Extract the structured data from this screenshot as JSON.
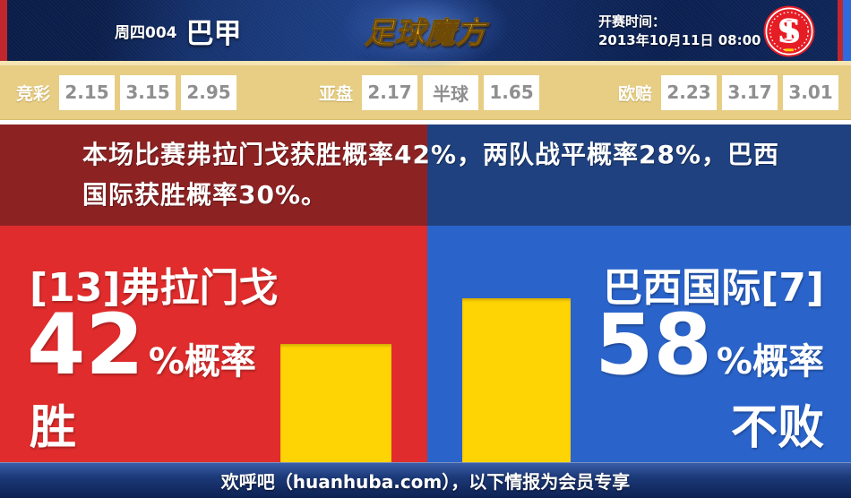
{
  "colors": {
    "home_red": "#e02c2c",
    "home_dark_red": "#8d2223",
    "away_blue": "#2a64cb",
    "away_dark_blue": "#20417f",
    "bar_yellow": "#ffd404",
    "odds_band_gold": "#e7ce84",
    "header_navy": "#122a64",
    "footer_navy": "#1c3a79"
  },
  "header": {
    "match_code": "周四004",
    "league": "巴甲",
    "site_logo": "足球魔方",
    "kickoff_label": "开赛时间：",
    "kickoff_datetime": "2013年10月11日 08:00",
    "club_badge_icon": "internacional-crest-icon"
  },
  "odds": {
    "groups": [
      {
        "label": "竞彩",
        "values": [
          "2.15",
          "3.15",
          "2.95"
        ]
      },
      {
        "label": "亚盘",
        "values": [
          "2.17",
          "半球",
          "1.65"
        ]
      },
      {
        "label": "欧赔",
        "values": [
          "2.23",
          "3.17",
          "3.01"
        ]
      }
    ]
  },
  "banner": {
    "text": "本场比赛弗拉门戈获胜概率42%，两队战平概率28%，巴西国际获胜概率30%。"
  },
  "teams": {
    "home": {
      "name": "[13]弗拉门戈",
      "suffix": "%概率",
      "outcome": "胜"
    },
    "away": {
      "name": "巴西国际[7]",
      "suffix": "%概率",
      "outcome": "不败"
    }
  },
  "chart_data": {
    "type": "bar",
    "categories": [
      "[13]弗拉门戈",
      "巴西国际[7]"
    ],
    "values": [
      42,
      58
    ],
    "unit": "%",
    "bar_color": "#ffd404",
    "annotations": [
      "42%概率 胜",
      "58%概率 不败"
    ],
    "legend_position": "none",
    "grid": false
  },
  "footer": {
    "text": "欢呼吧（huanhuba.com），以下情报为会员专享"
  }
}
